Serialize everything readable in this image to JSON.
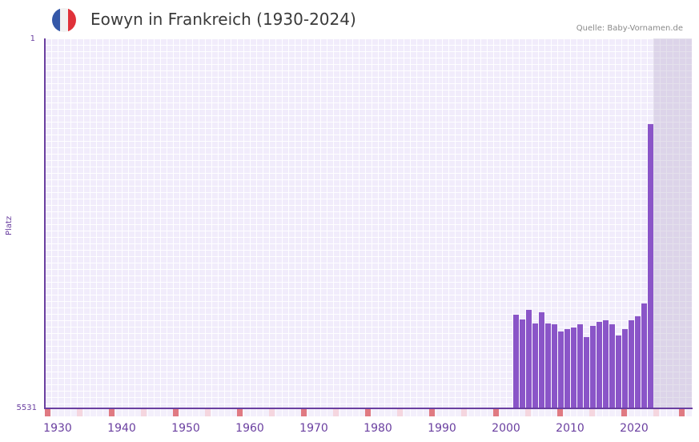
{
  "header": {
    "title": "Eowyn in Frankreich (1930-2024)",
    "source": "Quelle: Baby-Vornamen.de",
    "flag": {
      "name": "france-flag-icon",
      "colors": [
        "#3558a8",
        "#f2f2f2",
        "#e0323a"
      ]
    }
  },
  "axes": {
    "ylabel": "Platz",
    "ytick_top": "1",
    "ytick_bottom": "5531",
    "xticks": [
      "1930",
      "1940",
      "1950",
      "1960",
      "1970",
      "1980",
      "1990",
      "2000",
      "2010",
      "2020"
    ]
  },
  "colors": {
    "bar": "#8a55c8",
    "axis": "#6a3fa0",
    "marker_decade": "#e07a82",
    "marker_half": "#f5d6df",
    "plot_bg": "#f1ecfb"
  },
  "chart_data": {
    "type": "bar",
    "title": "Eowyn in Frankreich (1930-2024)",
    "xlabel": "",
    "ylabel": "Platz",
    "ylim": [
      5531,
      1
    ],
    "y_inverted": true,
    "x_range": [
      1930,
      2029
    ],
    "grid": true,
    "source": "Quelle: Baby-Vornamen.de",
    "categories": [
      "2003",
      "2004",
      "2005",
      "2006",
      "2007",
      "2008",
      "2009",
      "2010",
      "2011",
      "2012",
      "2013",
      "2014",
      "2015",
      "2016",
      "2017",
      "2018",
      "2019",
      "2020",
      "2021",
      "2022",
      "2023",
      "2024"
    ],
    "values": [
      4130,
      4200,
      4060,
      4260,
      4090,
      4260,
      4280,
      4380,
      4350,
      4320,
      4280,
      4460,
      4300,
      4240,
      4220,
      4280,
      4440,
      4350,
      4220,
      4150,
      3960,
      1280
    ]
  }
}
